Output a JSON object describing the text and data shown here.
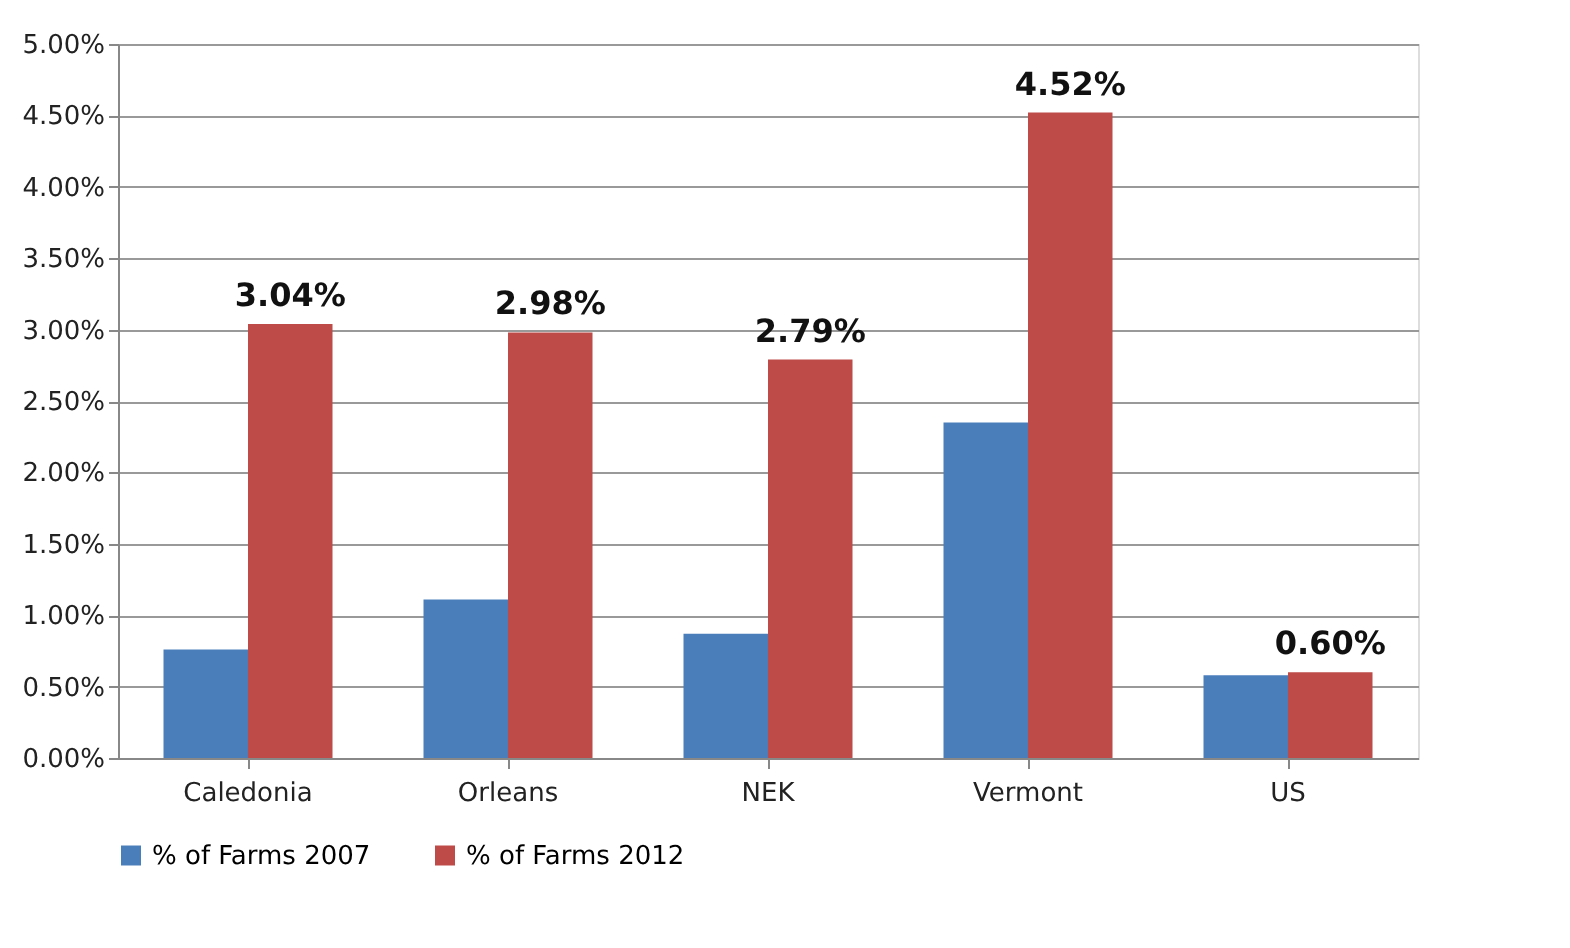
{
  "chart_data": {
    "type": "bar",
    "categories": [
      "Caledonia",
      "Orleans",
      "NEK",
      "Vermont",
      "US"
    ],
    "series": [
      {
        "name": "% of Farms 2007",
        "color": "#4a7ebb",
        "values": [
          0.76,
          1.11,
          0.87,
          2.35,
          0.58
        ]
      },
      {
        "name": "% of Farms 2012",
        "color": "#be4b48",
        "values": [
          3.04,
          2.98,
          2.79,
          4.52,
          0.6
        ],
        "value_labels": [
          "3.04%",
          "2.98%",
          "2.79%",
          "4.52%",
          "0.60%"
        ]
      }
    ],
    "ylim": [
      0,
      5
    ],
    "yticks": [
      {
        "value": 0,
        "label": "0.00%"
      },
      {
        "value": 0.5,
        "label": "0.50%"
      },
      {
        "value": 1,
        "label": "1.00%"
      },
      {
        "value": 1.5,
        "label": "1.50%"
      },
      {
        "value": 2,
        "label": "2.00%"
      },
      {
        "value": 2.5,
        "label": "2.50%"
      },
      {
        "value": 3,
        "label": "3.00%"
      },
      {
        "value": 3.5,
        "label": "3.50%"
      },
      {
        "value": 4,
        "label": "4.00%"
      },
      {
        "value": 4.5,
        "label": "4.50%"
      },
      {
        "value": 5,
        "label": "5.00%"
      }
    ],
    "grid": "y",
    "legend": "bottom"
  }
}
